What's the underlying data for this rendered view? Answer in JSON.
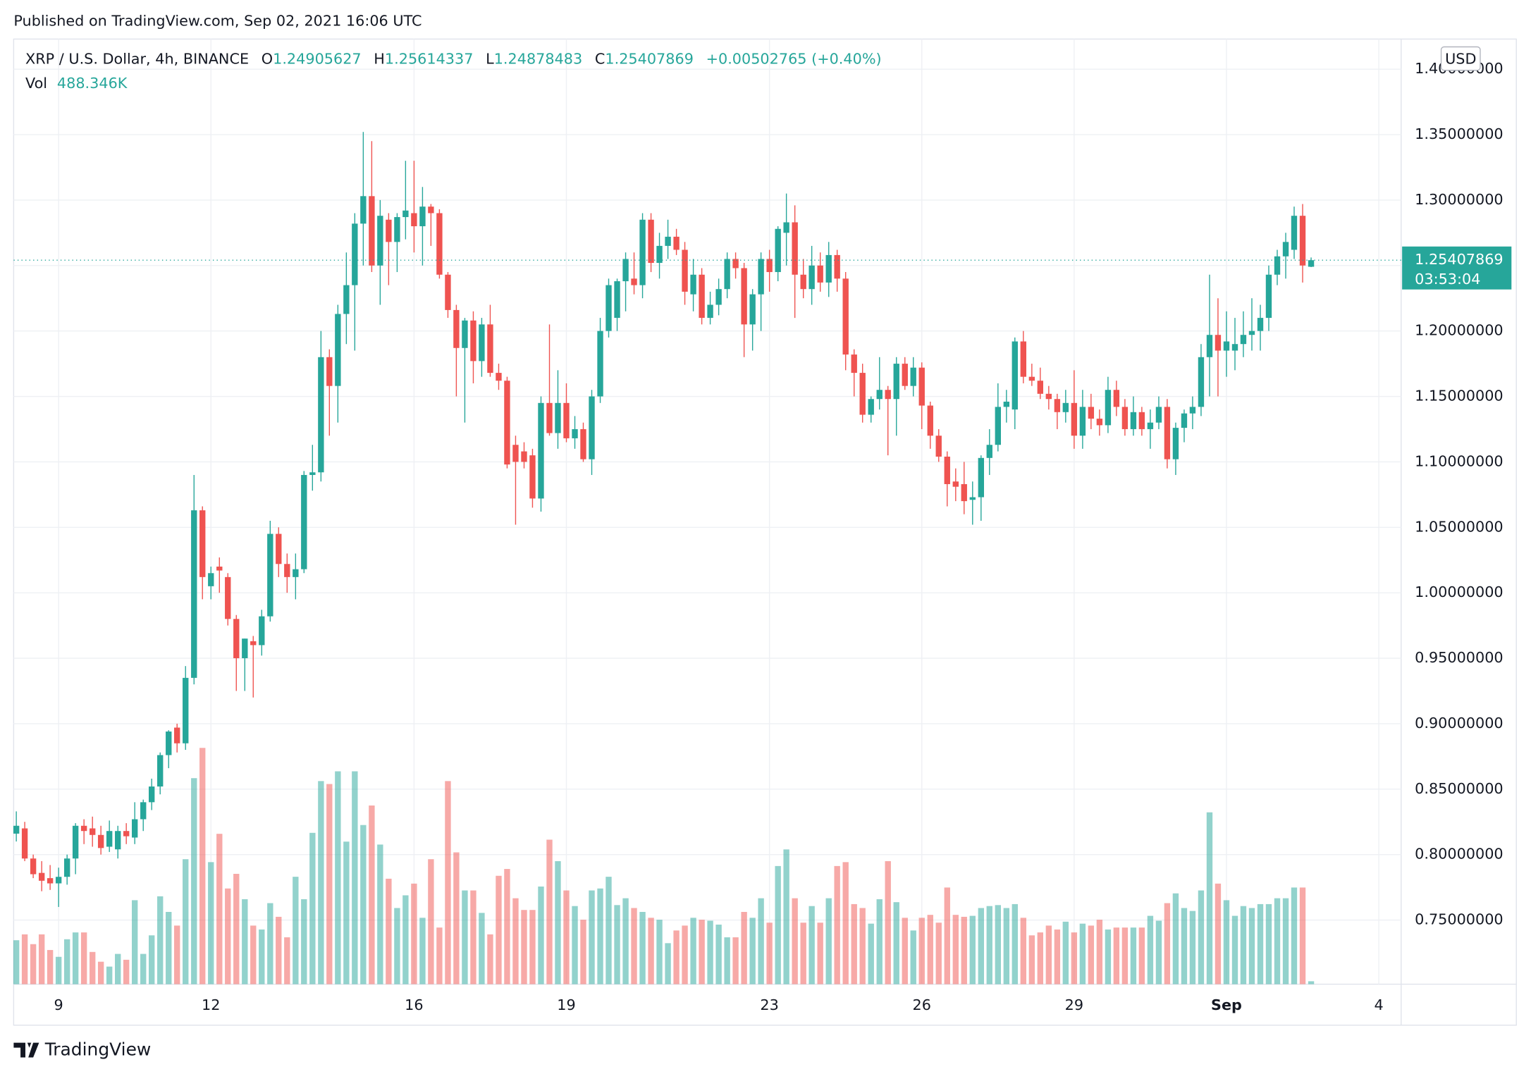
{
  "header": {
    "published": "Published on TradingView.com, Sep 02, 2021 16:06 UTC",
    "brand": "TradingView"
  },
  "chart_data": {
    "type": "candlestick",
    "title": "XRP / U.S. Dollar, 4h, BINANCE",
    "ohlc_labels": [
      "O",
      "H",
      "L",
      "C"
    ],
    "change_label": "+0.00502765 (+0.40%)",
    "currency": "USD",
    "countdown": "03:53:04",
    "up_color": "#26a69a",
    "down_color": "#ef5350",
    "grid": true,
    "xlim": [
      8.115,
      35.44
    ],
    "xticks": [
      9,
      12,
      16,
      19,
      23,
      26,
      29,
      {
        "value": 32,
        "label": "Sep"
      },
      {
        "value": 35,
        "label": "4"
      }
    ],
    "ylim": [
      0.701,
      1.423
    ],
    "yticks": [
      {
        "value": 0.75,
        "label": "0.75000000"
      },
      {
        "value": 0.8,
        "label": "0.80000000"
      },
      {
        "value": 0.85,
        "label": "0.85000000"
      },
      {
        "value": 0.9,
        "label": "0.90000000"
      },
      {
        "value": 0.95,
        "label": "0.95000000"
      },
      {
        "value": 1.0,
        "label": "1.00000000"
      },
      {
        "value": 1.05,
        "label": "1.05000000"
      },
      {
        "value": 1.1,
        "label": "1.10000000"
      },
      {
        "value": 1.15,
        "label": "1.15000000"
      },
      {
        "value": 1.2,
        "label": "1.20000000"
      },
      {
        "value": 1.25,
        "label": "1.25000000"
      },
      {
        "value": 1.3,
        "label": "1.30000000"
      },
      {
        "value": 1.35,
        "label": "1.35000000"
      },
      {
        "value": 1.4,
        "label": "1.40000000"
      }
    ],
    "x": [
      8.167,
      8.333,
      8.5,
      8.667,
      8.833,
      9,
      9.167,
      9.333,
      9.5,
      9.667,
      9.833,
      10,
      10.167,
      10.333,
      10.5,
      10.667,
      10.833,
      11,
      11.167,
      11.333,
      11.5,
      11.667,
      11.833,
      12,
      12.167,
      12.333,
      12.5,
      12.667,
      12.833,
      13,
      13.167,
      13.333,
      13.5,
      13.667,
      13.833,
      14,
      14.167,
      14.333,
      14.5,
      14.667,
      14.833,
      15,
      15.167,
      15.333,
      15.5,
      15.667,
      15.833,
      16,
      16.167,
      16.333,
      16.5,
      16.667,
      16.833,
      17,
      17.167,
      17.333,
      17.5,
      17.667,
      17.833,
      18,
      18.167,
      18.333,
      18.5,
      18.667,
      18.833,
      19,
      19.167,
      19.333,
      19.5,
      19.667,
      19.833,
      20,
      20.167,
      20.333,
      20.5,
      20.667,
      20.833,
      21,
      21.167,
      21.333,
      21.5,
      21.667,
      21.833,
      22,
      22.167,
      22.333,
      22.5,
      22.667,
      22.833,
      23,
      23.167,
      23.333,
      23.5,
      23.667,
      23.833,
      24,
      24.167,
      24.333,
      24.5,
      24.667,
      24.833,
      25,
      25.167,
      25.333,
      25.5,
      25.667,
      25.833,
      26,
      26.167,
      26.333,
      26.5,
      26.667,
      26.833,
      27,
      27.167,
      27.333,
      27.5,
      27.667,
      27.833,
      28,
      28.167,
      28.333,
      28.5,
      28.667,
      28.833,
      29,
      29.167,
      29.333,
      29.5,
      29.667,
      29.833,
      30,
      30.167,
      30.333,
      30.5,
      30.667,
      30.833,
      31,
      31.167,
      31.333,
      31.5,
      31.667,
      31.833,
      32,
      32.167,
      32.333,
      32.5,
      32.667,
      32.833,
      33,
      33.167,
      33.333,
      33.5,
      33.667
    ],
    "open": [
      0.816,
      0.82,
      0.797,
      0.786,
      0.782,
      0.778,
      0.783,
      0.797,
      0.822,
      0.82,
      0.815,
      0.806,
      0.804,
      0.818,
      0.813,
      0.827,
      0.84,
      0.852,
      0.876,
      0.897,
      0.885,
      0.935,
      1.063,
      1.005,
      1.02,
      1.012,
      0.98,
      0.95,
      0.963,
      0.96,
      0.982,
      1.045,
      1.022,
      1.012,
      1.018,
      1.09,
      1.092,
      1.18,
      1.158,
      1.213,
      1.235,
      1.282,
      1.303,
      1.25,
      1.285,
      1.268,
      1.287,
      1.29,
      1.28,
      1.295,
      1.29,
      1.243,
      1.216,
      1.187,
      1.208,
      1.177,
      1.205,
      1.168,
      1.162,
      1.113,
      1.108,
      1.105,
      1.072,
      1.145,
      1.122,
      1.145,
      1.118,
      1.125,
      1.102,
      1.15,
      1.2,
      1.21,
      1.238,
      1.24,
      1.235,
      1.285,
      1.252,
      1.265,
      1.272,
      1.262,
      1.228,
      1.243,
      1.21,
      1.22,
      1.232,
      1.255,
      1.248,
      1.205,
      1.228,
      1.255,
      1.245,
      1.275,
      1.283,
      1.243,
      1.232,
      1.25,
      1.237,
      1.258,
      1.24,
      1.182,
      1.168,
      1.136,
      1.148,
      1.155,
      1.148,
      1.175,
      1.158,
      1.172,
      1.143,
      1.12,
      1.104,
      1.085,
      1.083,
      1.071,
      1.073,
      1.103,
      1.113,
      1.142,
      1.14,
      1.192,
      1.165,
      1.162,
      1.152,
      1.148,
      1.138,
      1.145,
      1.12,
      1.142,
      1.133,
      1.128,
      1.155,
      1.142,
      1.125,
      1.138,
      1.125,
      1.13,
      1.142,
      1.102,
      1.126,
      1.137,
      1.142,
      1.18,
      1.197,
      1.185,
      1.185,
      1.19,
      1.197,
      1.2,
      1.21,
      1.243,
      1.257,
      1.262,
      1.288,
      1.24905627
    ],
    "high": [
      0.833,
      0.825,
      0.8,
      0.795,
      0.792,
      0.79,
      0.8,
      0.824,
      0.827,
      0.829,
      0.822,
      0.826,
      0.822,
      0.824,
      0.84,
      0.842,
      0.858,
      0.878,
      0.895,
      0.9,
      0.944,
      1.09,
      1.066,
      1.02,
      1.027,
      1.015,
      0.983,
      0.965,
      0.967,
      0.987,
      1.055,
      1.05,
      1.03,
      1.03,
      1.093,
      1.113,
      1.2,
      1.186,
      1.22,
      1.26,
      1.29,
      1.352,
      1.345,
      1.3,
      1.29,
      1.29,
      1.33,
      1.33,
      1.31,
      1.297,
      1.293,
      1.245,
      1.22,
      1.21,
      1.215,
      1.21,
      1.22,
      1.175,
      1.165,
      1.12,
      1.115,
      1.11,
      1.15,
      1.205,
      1.17,
      1.16,
      1.135,
      1.13,
      1.155,
      1.21,
      1.24,
      1.24,
      1.26,
      1.26,
      1.29,
      1.29,
      1.275,
      1.285,
      1.278,
      1.268,
      1.255,
      1.248,
      1.23,
      1.24,
      1.26,
      1.26,
      1.252,
      1.232,
      1.26,
      1.262,
      1.28,
      1.305,
      1.296,
      1.255,
      1.265,
      1.26,
      1.268,
      1.262,
      1.245,
      1.186,
      1.175,
      1.15,
      1.18,
      1.158,
      1.18,
      1.18,
      1.18,
      1.176,
      1.146,
      1.125,
      1.108,
      1.095,
      1.1,
      1.085,
      1.105,
      1.125,
      1.16,
      1.155,
      1.195,
      1.2,
      1.175,
      1.172,
      1.158,
      1.152,
      1.155,
      1.17,
      1.155,
      1.152,
      1.14,
      1.165,
      1.162,
      1.148,
      1.15,
      1.142,
      1.14,
      1.15,
      1.148,
      1.13,
      1.14,
      1.15,
      1.19,
      1.243,
      1.225,
      1.215,
      1.21,
      1.215,
      1.225,
      1.22,
      1.25,
      1.262,
      1.275,
      1.295,
      1.297,
      1.25614337
    ],
    "low": [
      0.81,
      0.795,
      0.782,
      0.772,
      0.773,
      0.76,
      0.777,
      0.785,
      0.808,
      0.806,
      0.8,
      0.802,
      0.797,
      0.808,
      0.808,
      0.818,
      0.834,
      0.846,
      0.866,
      0.878,
      0.88,
      0.93,
      0.995,
      0.995,
      1.0,
      0.975,
      0.925,
      0.925,
      0.92,
      0.952,
      0.978,
      1.012,
      1.0,
      0.995,
      1.015,
      1.078,
      1.085,
      1.12,
      1.13,
      1.19,
      1.185,
      1.25,
      1.245,
      1.22,
      1.235,
      1.245,
      1.27,
      1.26,
      1.25,
      1.265,
      1.24,
      1.21,
      1.15,
      1.13,
      1.16,
      1.165,
      1.165,
      1.155,
      1.095,
      1.052,
      1.095,
      1.065,
      1.062,
      1.12,
      1.11,
      1.115,
      1.11,
      1.1,
      1.09,
      1.145,
      1.195,
      1.2,
      1.215,
      1.228,
      1.225,
      1.245,
      1.24,
      1.255,
      1.258,
      1.22,
      1.215,
      1.205,
      1.205,
      1.212,
      1.225,
      1.24,
      1.18,
      1.185,
      1.2,
      1.23,
      1.238,
      1.25,
      1.21,
      1.225,
      1.22,
      1.23,
      1.226,
      1.23,
      1.17,
      1.15,
      1.13,
      1.13,
      1.14,
      1.105,
      1.12,
      1.155,
      1.15,
      1.125,
      1.11,
      1.1,
      1.066,
      1.07,
      1.06,
      1.052,
      1.055,
      1.09,
      1.108,
      1.13,
      1.125,
      1.16,
      1.158,
      1.148,
      1.14,
      1.125,
      1.13,
      1.11,
      1.11,
      1.125,
      1.12,
      1.122,
      1.135,
      1.12,
      1.12,
      1.12,
      1.11,
      1.125,
      1.095,
      1.09,
      1.115,
      1.125,
      1.135,
      1.15,
      1.15,
      1.165,
      1.17,
      1.18,
      1.185,
      1.185,
      1.2,
      1.235,
      1.24,
      1.255,
      1.237,
      1.24878483
    ],
    "close": [
      0.822,
      0.797,
      0.785,
      0.78,
      0.778,
      0.783,
      0.797,
      0.822,
      0.818,
      0.815,
      0.805,
      0.818,
      0.818,
      0.814,
      0.827,
      0.84,
      0.852,
      0.876,
      0.894,
      0.885,
      0.935,
      1.063,
      1.012,
      1.015,
      1.017,
      0.98,
      0.95,
      0.965,
      0.96,
      0.982,
      1.045,
      1.022,
      1.012,
      1.018,
      1.09,
      1.092,
      1.18,
      1.158,
      1.213,
      1.235,
      1.282,
      1.303,
      1.25,
      1.288,
      1.268,
      1.287,
      1.292,
      1.28,
      1.295,
      1.29,
      1.243,
      1.216,
      1.187,
      1.208,
      1.177,
      1.205,
      1.168,
      1.162,
      1.098,
      1.1,
      1.1,
      1.072,
      1.145,
      1.122,
      1.145,
      1.118,
      1.125,
      1.102,
      1.15,
      1.2,
      1.235,
      1.238,
      1.255,
      1.235,
      1.285,
      1.252,
      1.265,
      1.272,
      1.262,
      1.23,
      1.243,
      1.21,
      1.22,
      1.232,
      1.255,
      1.248,
      1.205,
      1.228,
      1.255,
      1.245,
      1.278,
      1.283,
      1.243,
      1.232,
      1.25,
      1.237,
      1.258,
      1.24,
      1.182,
      1.168,
      1.136,
      1.148,
      1.155,
      1.148,
      1.175,
      1.158,
      1.172,
      1.143,
      1.12,
      1.104,
      1.083,
      1.081,
      1.07,
      1.073,
      1.103,
      1.113,
      1.142,
      1.146,
      1.192,
      1.165,
      1.162,
      1.152,
      1.148,
      1.138,
      1.145,
      1.12,
      1.142,
      1.133,
      1.128,
      1.155,
      1.142,
      1.125,
      1.138,
      1.125,
      1.13,
      1.142,
      1.102,
      1.126,
      1.137,
      1.142,
      1.18,
      1.197,
      1.185,
      1.192,
      1.19,
      1.197,
      1.2,
      1.21,
      1.243,
      1.257,
      1.268,
      1.288,
      1.25,
      1.25407869
    ],
    "volume": {
      "name": "Vol",
      "last_label": "488.346K",
      "values": [
        7335,
        8313,
        6683,
        8313,
        5705,
        4564,
        7498,
        8639,
        8639,
        5379,
        3749,
        2934,
        5053,
        4075,
        14018,
        5053,
        8150,
        14670,
        12062,
        9780,
        20864,
        34393,
        39446,
        20375,
        25102,
        15974,
        18419,
        14181,
        9780,
        9128,
        13529,
        11247,
        7824,
        17930,
        14181,
        25265,
        33904,
        33415,
        35534,
        23798,
        35534,
        26569,
        29829,
        23309,
        17604,
        12714,
        14833,
        16789,
        11084,
        20864,
        9454,
        33904,
        22005,
        15648,
        15648,
        11899,
        8313,
        18093,
        19234,
        14344,
        12388,
        12388,
        16300,
        24124,
        20538,
        15648,
        13040,
        10758,
        15648,
        15974,
        17930,
        13203,
        14344,
        12714,
        12062,
        11084,
        10758,
        6846,
        8965,
        9780,
        11084,
        10758,
        10595,
        9943,
        7824,
        7824,
        12062,
        11084,
        14344,
        10269,
        19723,
        22494,
        14344,
        10269,
        13040,
        10269,
        14344,
        19723,
        20375,
        13366,
        12714,
        10106,
        14181,
        20538,
        13692,
        11084,
        8965,
        11084,
        11573,
        10269,
        16137,
        11573,
        11247,
        11410,
        12714,
        13040,
        13203,
        12714,
        13366,
        11084,
        8150,
        8639,
        9780,
        9128,
        10432,
        8639,
        10106,
        9780,
        10758,
        9128,
        9454,
        9454,
        9454,
        9454,
        11410,
        10595,
        13529,
        15159,
        12714,
        12225,
        15648,
        28688,
        16789,
        14018,
        11410,
        13040,
        12714,
        13366,
        13366,
        14344,
        14344,
        16137,
        16137,
        488.346
      ]
    }
  }
}
